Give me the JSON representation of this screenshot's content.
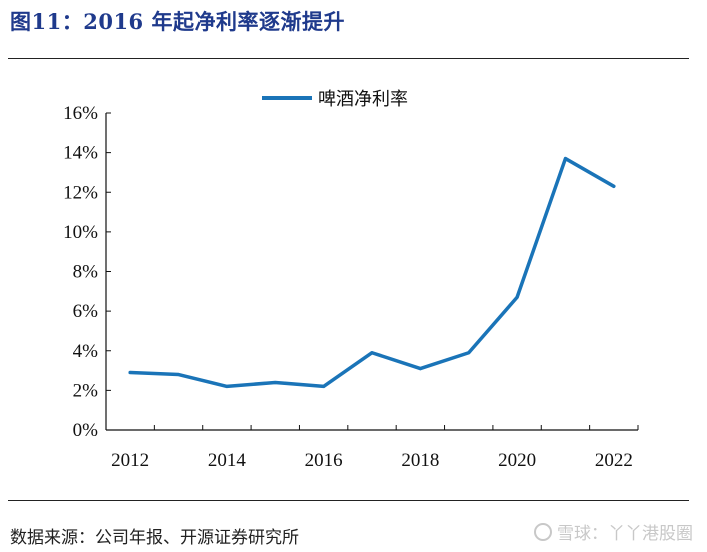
{
  "figure": {
    "title": "图11：2016 年起净利率逐渐提升",
    "source": "数据来源：公司年报、开源证券研究所",
    "watermark": "雪球：丫丫港股圈"
  },
  "colors": {
    "line": "#1a74b8",
    "title": "#1f3a8c"
  },
  "chart_data": {
    "type": "line",
    "title": "",
    "xlabel": "",
    "ylabel": "",
    "x": [
      2012,
      2013,
      2014,
      2015,
      2016,
      2017,
      2018,
      2019,
      2020,
      2021,
      2022
    ],
    "x_tick_labels": [
      "2012",
      "2014",
      "2016",
      "2018",
      "2020",
      "2022"
    ],
    "y_tick_labels": [
      "0%",
      "2%",
      "4%",
      "6%",
      "8%",
      "10%",
      "12%",
      "14%",
      "16%"
    ],
    "ylim": [
      0,
      16
    ],
    "y_unit": "%",
    "grid": false,
    "legend": "top-center",
    "series": [
      {
        "name": "啤酒净利率",
        "values": [
          2.9,
          2.8,
          2.2,
          2.4,
          2.2,
          3.9,
          3.1,
          3.9,
          6.7,
          13.7,
          12.3
        ]
      }
    ]
  }
}
